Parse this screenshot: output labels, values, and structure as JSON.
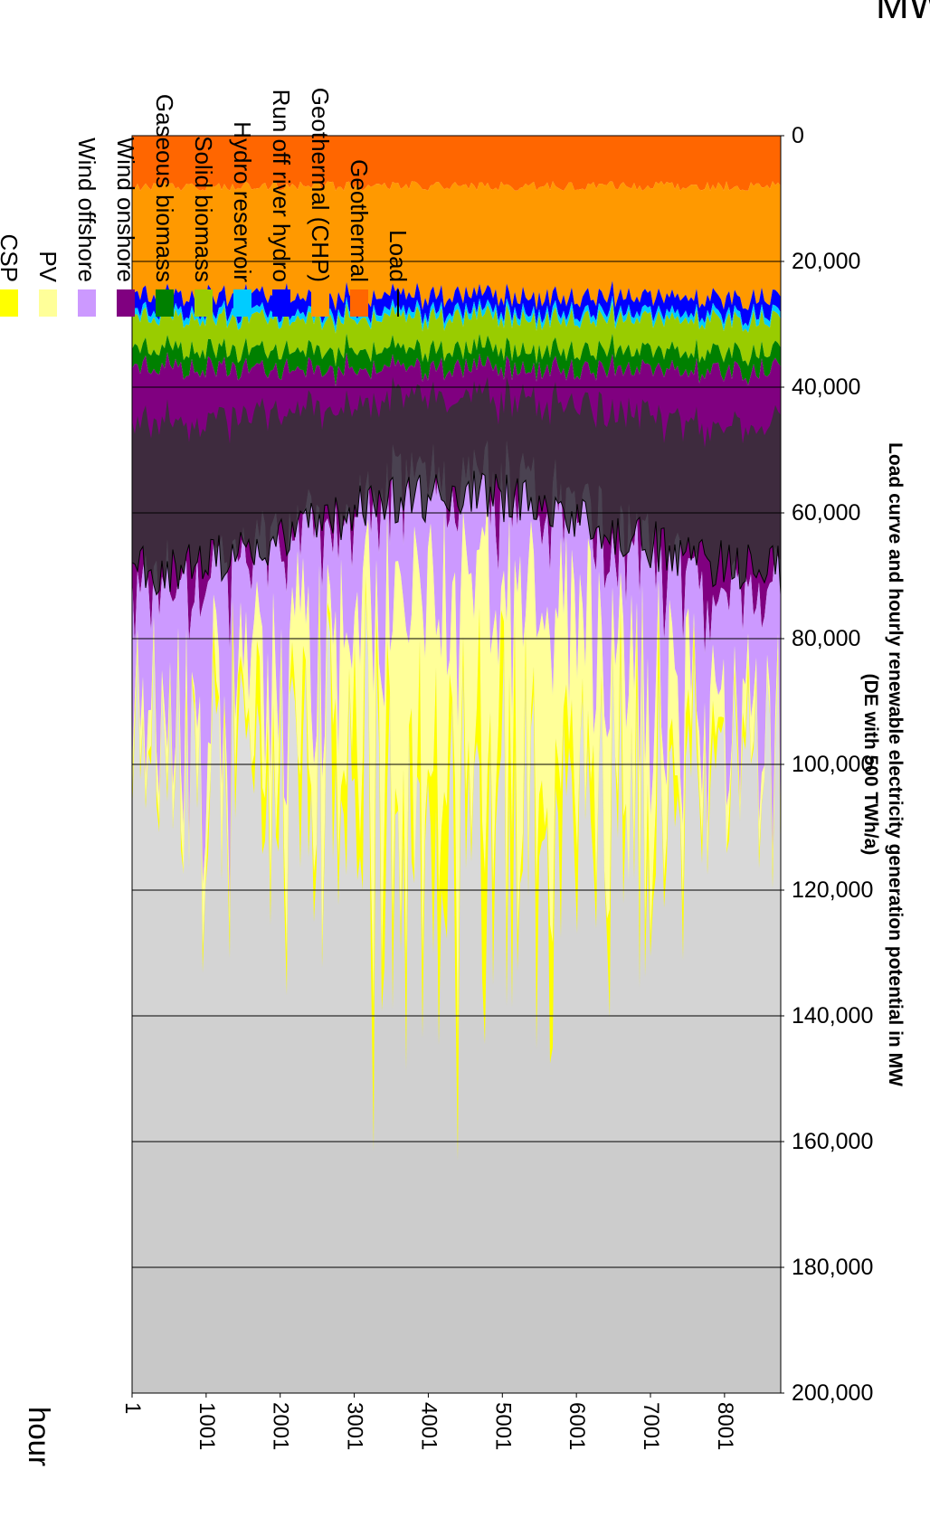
{
  "chart_data": {
    "type": "area",
    "stacked": true,
    "orientation": "rotated-90-clockwise",
    "title_lines": [
      "Load curve and hourly renewable electricity generation potential in MW",
      "(DE with 500 TWh/a)"
    ],
    "xlabel": "hour",
    "ylabel": "MW",
    "xlim": [
      1,
      8760
    ],
    "ylim": [
      0,
      200000
    ],
    "x_ticks": [
      "1",
      "1001",
      "2001",
      "3001",
      "4001",
      "5001",
      "6001",
      "7001",
      "8001"
    ],
    "y_ticks": [
      "0",
      "20,000",
      "40,000",
      "60,000",
      "80,000",
      "100,000",
      "120,000",
      "140,000",
      "160,000",
      "180,000",
      "200,000"
    ],
    "grid": true,
    "legend_position": "right",
    "series": [
      {
        "name": "Geothermal",
        "color": "#FF6600",
        "typical_mw": 8000
      },
      {
        "name": "Geothermal (CHP)",
        "color": "#FF9900",
        "typical_mw": 17500
      },
      {
        "name": "Run off river hydro",
        "color": "#0000FF",
        "typical_mw": 2500
      },
      {
        "name": "Hydro reservoir",
        "color": "#00CCFF",
        "typical_mw": 1000
      },
      {
        "name": "Solid biomass",
        "color": "#99CC00",
        "typical_mw": 5000
      },
      {
        "name": "Gaseous biomass",
        "color": "#008000",
        "typical_mw": 3000
      },
      {
        "name": "Wind onshore",
        "color": "#800080",
        "range_mw": [
          0,
          50000
        ]
      },
      {
        "name": "Wind offshore",
        "color": "#CC99FF",
        "range_mw": [
          0,
          90000
        ]
      },
      {
        "name": "PV",
        "color": "#FFFF99",
        "range_mw": [
          0,
          65000
        ]
      },
      {
        "name": "CSP",
        "color": "#FFFF00",
        "range_mw": [
          0,
          30000
        ]
      }
    ],
    "load": {
      "name": "Load",
      "color": "#000000",
      "range_mw": [
        40000,
        80000
      ]
    },
    "load_band_color": "#333333",
    "legend_order": [
      "CSP",
      "PV",
      "Wind offshore",
      "Wind onshore",
      "Gaseous biomass",
      "Solid biomass",
      "Hydro reservoir",
      "Run off river hydro",
      "Geothermal (CHP)",
      "Geothermal",
      "Load"
    ]
  }
}
